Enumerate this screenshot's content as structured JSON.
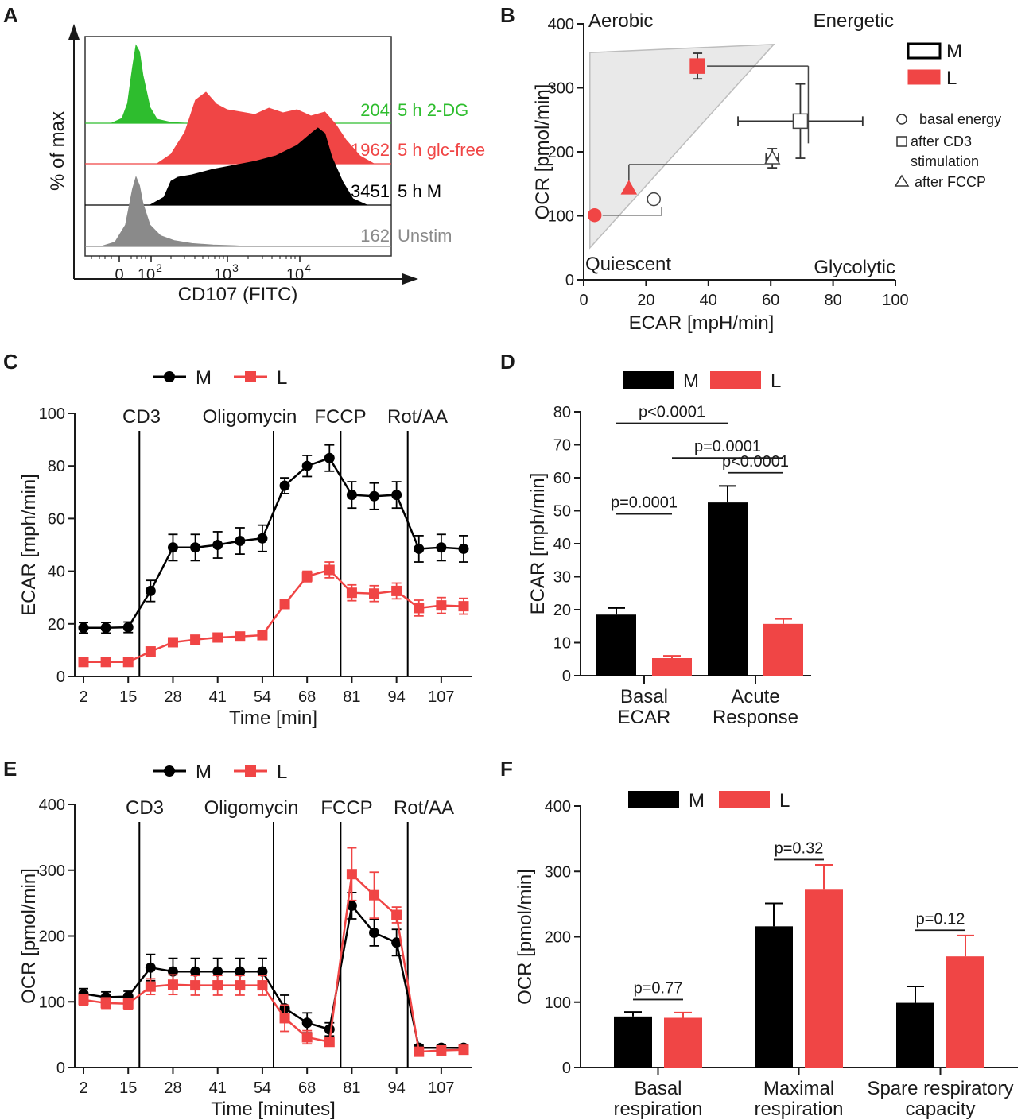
{
  "colors": {
    "M": "#000000",
    "L": "#f04545",
    "green": "#2ebd2e",
    "gray": "#8a8a8a",
    "axis": "#1a1a1a",
    "shade": "#e9e9e9"
  },
  "panel_letters": [
    "A",
    "B",
    "C",
    "D",
    "E",
    "F"
  ],
  "chart_data": [
    {
      "panel": "A",
      "type": "area",
      "title": "",
      "ylabel": "% of max",
      "xlabel": "CD107 (FITC)",
      "x_ticks": [
        {
          "label": "0"
        },
        {
          "label": "10",
          "sup": "2"
        },
        {
          "label": "10",
          "sup": "3"
        },
        {
          "label": "10",
          "sup": "4"
        }
      ],
      "series": [
        {
          "name": "5 h 2-DG",
          "mfi": "204",
          "color": "green",
          "x": [
            0.15,
            0.3,
            0.38,
            0.45,
            0.5,
            0.55,
            0.6,
            0.7,
            0.8,
            1.0,
            1.2
          ],
          "y": [
            0,
            0.06,
            0.25,
            0.7,
            0.98,
            0.9,
            0.6,
            0.2,
            0.05,
            0.01,
            0
          ]
        },
        {
          "name": "5 h glc-free",
          "mfi": "1962",
          "color": "L",
          "x": [
            0.8,
            1.0,
            1.2,
            1.35,
            1.5,
            1.65,
            1.8,
            2.0,
            2.2,
            2.4,
            2.6,
            2.8,
            3.0,
            3.2,
            3.35,
            3.5,
            3.7,
            3.9
          ],
          "y": [
            0,
            0.12,
            0.4,
            0.8,
            0.9,
            0.75,
            0.68,
            0.65,
            0.62,
            0.7,
            0.64,
            0.68,
            0.6,
            0.65,
            0.5,
            0.3,
            0.1,
            0
          ]
        },
        {
          "name": "5 h M",
          "mfi": "3451",
          "color": "M",
          "x": [
            0.7,
            0.9,
            1.0,
            1.1,
            1.3,
            1.6,
            1.9,
            2.2,
            2.5,
            2.8,
            3.0,
            3.1,
            3.2,
            3.3,
            3.45,
            3.6,
            3.8
          ],
          "y": [
            0,
            0.1,
            0.3,
            0.35,
            0.38,
            0.45,
            0.5,
            0.55,
            0.62,
            0.75,
            0.9,
            0.97,
            0.9,
            0.6,
            0.3,
            0.08,
            0
          ]
        },
        {
          "name": "Unstim",
          "mfi": "162",
          "color": "gray",
          "x": [
            0.0,
            0.2,
            0.35,
            0.45,
            0.5,
            0.55,
            0.6,
            0.7,
            0.85,
            1.05,
            1.3,
            1.6,
            1.9,
            2.1
          ],
          "y": [
            0,
            0.06,
            0.3,
            0.8,
            0.97,
            0.85,
            0.6,
            0.3,
            0.15,
            0.08,
            0.04,
            0.02,
            0.01,
            0
          ]
        }
      ]
    },
    {
      "panel": "B",
      "type": "scatter",
      "xlabel": "ECAR [mpH/min]",
      "ylabel": "OCR [pmol/min]",
      "xlim": [
        0,
        100
      ],
      "ylim": [
        0,
        400
      ],
      "x_ticks": [
        0,
        20,
        40,
        60,
        80,
        100
      ],
      "y_ticks": [
        0,
        100,
        200,
        300,
        400
      ],
      "quadrants": [
        "Aerobic",
        "Energetic",
        "Quiescent",
        "Glycolytic"
      ],
      "shade_polygon": [
        [
          2,
          355
        ],
        [
          61,
          368
        ],
        [
          2,
          50
        ]
      ],
      "legend": {
        "group_entries": [
          "M",
          "L"
        ],
        "shape_entries": [
          "basal energy",
          "after CD3",
          "stimulation",
          "after FCCP"
        ]
      },
      "points": [
        {
          "group": "L",
          "marker": "circle",
          "x": 3.5,
          "y": 101
        },
        {
          "group": "M",
          "marker": "circle",
          "x": 22.5,
          "y": 126
        },
        {
          "group": "L",
          "marker": "triangle",
          "x": 14.5,
          "y": 143
        },
        {
          "group": "M",
          "marker": "triangle",
          "x": 60.5,
          "y": 190,
          "xerr": 2,
          "yerr": 15
        },
        {
          "group": "L",
          "marker": "square",
          "x": 36.5,
          "y": 334,
          "xerr": 0,
          "yerr": 20
        },
        {
          "group": "M",
          "marker": "square",
          "x": 69.5,
          "y": 248,
          "xerr": 20,
          "yerr": 58
        }
      ],
      "connectors": [
        {
          "from": [
            3.5,
            101
          ],
          "to": [
            22.5,
            126
          ]
        },
        {
          "from": [
            14.5,
            143
          ],
          "to": [
            60.5,
            190
          ]
        },
        {
          "from": [
            36.5,
            334
          ],
          "to": [
            69.5,
            248
          ]
        }
      ]
    },
    {
      "panel": "C",
      "type": "line",
      "xlabel": "Time [min]",
      "ylabel": "ECAR [mph/min]",
      "ylim": [
        0,
        100
      ],
      "y_ticks": [
        0,
        20,
        40,
        60,
        80,
        100
      ],
      "x_tick_labels": [
        "2",
        "15",
        "28",
        "41",
        "54",
        "68",
        "81",
        "94",
        "107"
      ],
      "injections": [
        {
          "label": "CD3",
          "after_point": 2.5
        },
        {
          "label": "Oligomycin",
          "after_point": 8.5
        },
        {
          "label": "FCCP",
          "after_point": 11.5
        },
        {
          "label": "Rot/AA",
          "after_point": 14.5
        }
      ],
      "legend": [
        "M",
        "L"
      ],
      "series": [
        {
          "name": "M",
          "color": "M",
          "marker": "circle",
          "values": [
            18.5,
            18.5,
            18.7,
            32.5,
            49,
            49,
            50,
            51.5,
            52.5,
            72.5,
            80,
            83,
            69,
            68.5,
            69,
            48.5,
            49,
            48.5
          ],
          "errors": [
            2,
            2,
            2,
            4,
            5,
            5,
            5,
            5,
            5,
            3,
            4,
            5,
            5,
            5,
            5,
            5,
            5,
            5
          ]
        },
        {
          "name": "L",
          "color": "L",
          "marker": "square",
          "values": [
            5.5,
            5.5,
            5.5,
            9.5,
            13,
            14,
            14.8,
            15.2,
            15.7,
            27.5,
            38,
            40.5,
            31.8,
            31.5,
            32.5,
            26,
            27,
            26.7
          ],
          "errors": [
            1,
            1,
            1,
            1.5,
            1.5,
            1.5,
            1.5,
            1.5,
            1.5,
            1.5,
            2,
            3,
            3,
            3,
            3,
            3,
            3,
            3
          ]
        }
      ]
    },
    {
      "panel": "D",
      "type": "bar",
      "ylabel": "ECAR [mph/min]",
      "ylim": [
        0,
        80
      ],
      "y_ticks": [
        0,
        10,
        20,
        30,
        40,
        50,
        60,
        70,
        80
      ],
      "categories": [
        {
          "line1": "Basal",
          "line2": "ECAR"
        },
        {
          "line1": "Acute",
          "line2": "Response"
        }
      ],
      "legend": [
        "M",
        "L"
      ],
      "series": [
        {
          "name": "M",
          "color": "M",
          "values": [
            18.5,
            52.5
          ],
          "errors": [
            2,
            5
          ]
        },
        {
          "name": "L",
          "color": "L",
          "values": [
            5.3,
            15.7
          ],
          "errors": [
            0.7,
            1.5
          ]
        }
      ],
      "annotations": [
        {
          "text": "p<0.0001",
          "from": [
            0,
            "M"
          ],
          "to": [
            1,
            "M"
          ],
          "level": 76.5
        },
        {
          "text": "p=0.0001",
          "from": [
            0,
            "L"
          ],
          "to": [
            1,
            "L"
          ],
          "level": 66
        },
        {
          "text": "p<0.0001",
          "from": [
            1,
            "M"
          ],
          "to": [
            1,
            "L"
          ],
          "level": 61.5
        },
        {
          "text": "p=0.0001",
          "from": [
            0,
            "M"
          ],
          "to": [
            0,
            "L"
          ],
          "level": 49
        }
      ]
    },
    {
      "panel": "E",
      "type": "line",
      "xlabel": "Time [minutes]",
      "ylabel": "OCR [pmol/min]",
      "ylim": [
        0,
        400
      ],
      "y_ticks": [
        0,
        100,
        200,
        300,
        400
      ],
      "x_tick_labels": [
        "2",
        "15",
        "28",
        "41",
        "54",
        "68",
        "81",
        "94",
        "107"
      ],
      "injections": [
        {
          "label": "CD3",
          "after_point": 2.5
        },
        {
          "label": "Oligomycin",
          "after_point": 8.5
        },
        {
          "label": "FCCP",
          "after_point": 11.5
        },
        {
          "label": "Rot/AA",
          "after_point": 14.5
        }
      ],
      "legend": [
        "M",
        "L"
      ],
      "series": [
        {
          "name": "M",
          "color": "M",
          "marker": "circle",
          "values": [
            112,
            107,
            108,
            152,
            146,
            146,
            146,
            146,
            146,
            90,
            68,
            58,
            246,
            205,
            190,
            30,
            30,
            30
          ],
          "errors": [
            8,
            8,
            8,
            20,
            20,
            20,
            20,
            20,
            20,
            20,
            15,
            10,
            20,
            20,
            20,
            4,
            4,
            4
          ]
        },
        {
          "name": "L",
          "color": "L",
          "marker": "square",
          "values": [
            103,
            98,
            97,
            123,
            126,
            125,
            125,
            125,
            125,
            75,
            46,
            39,
            294,
            262,
            232,
            24,
            26,
            27
          ],
          "errors": [
            8,
            8,
            8,
            12,
            15,
            15,
            15,
            15,
            15,
            20,
            10,
            6,
            40,
            35,
            12,
            5,
            5,
            5
          ]
        }
      ]
    },
    {
      "panel": "F",
      "type": "bar",
      "ylabel": "OCR [pmol/min]",
      "ylim": [
        0,
        400
      ],
      "y_ticks": [
        0,
        100,
        200,
        300,
        400
      ],
      "categories": [
        {
          "line1": "Basal",
          "line2": "respiration"
        },
        {
          "line1": "Maximal",
          "line2": "respiration"
        },
        {
          "line1": "Spare respiratory",
          "line2": "capacity"
        }
      ],
      "legend": [
        "M",
        "L"
      ],
      "series": [
        {
          "name": "M",
          "color": "M",
          "values": [
            78,
            216,
            99
          ],
          "errors": [
            7,
            35,
            25
          ]
        },
        {
          "name": "L",
          "color": "L",
          "values": [
            76,
            272,
            170
          ],
          "errors": [
            8,
            38,
            32
          ]
        }
      ],
      "annotations": [
        {
          "text": "p=0.77",
          "group": 0,
          "level": 104
        },
        {
          "text": "p=0.32",
          "group": 1,
          "level": 318
        },
        {
          "text": "p=0.12",
          "group": 2,
          "level": 210
        }
      ]
    }
  ]
}
